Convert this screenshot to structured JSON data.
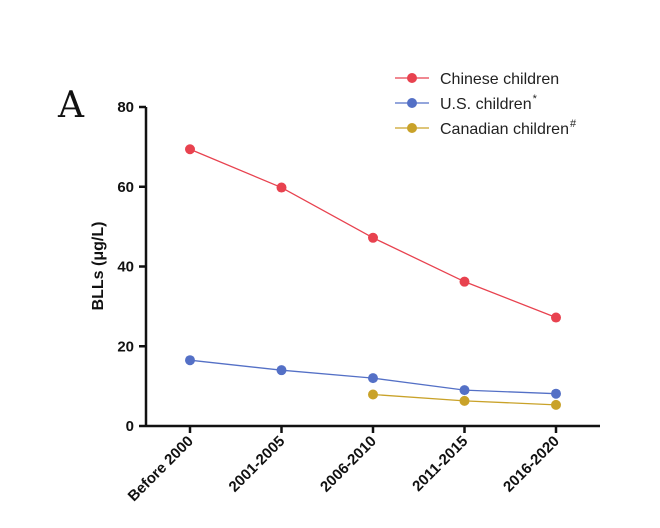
{
  "panel_label": "A",
  "chart_data": {
    "type": "line",
    "title": "",
    "xlabel": "",
    "ylabel": "BLLs (μg/L)",
    "categories": [
      "Before 2000",
      "2001-2005",
      "2006-2010",
      "2011-2015",
      "2016-2020"
    ],
    "ylim": [
      0,
      80
    ],
    "yticks": [
      "0",
      "20",
      "40",
      "60",
      "80"
    ],
    "grid": false,
    "legend_position": "top-right",
    "series": [
      {
        "name": "Chinese children",
        "superscript": "",
        "color": "#e8424f",
        "values": [
          69.4,
          59.8,
          47.2,
          36.2,
          27.2
        ]
      },
      {
        "name": "U.S. children",
        "superscript": "*",
        "color": "#5470c6",
        "values": [
          16.5,
          14.0,
          12.0,
          9.0,
          8.1
        ]
      },
      {
        "name": "Canadian children",
        "superscript": "#",
        "color": "#c9a229",
        "values": [
          null,
          null,
          7.9,
          6.3,
          5.3
        ]
      }
    ]
  }
}
